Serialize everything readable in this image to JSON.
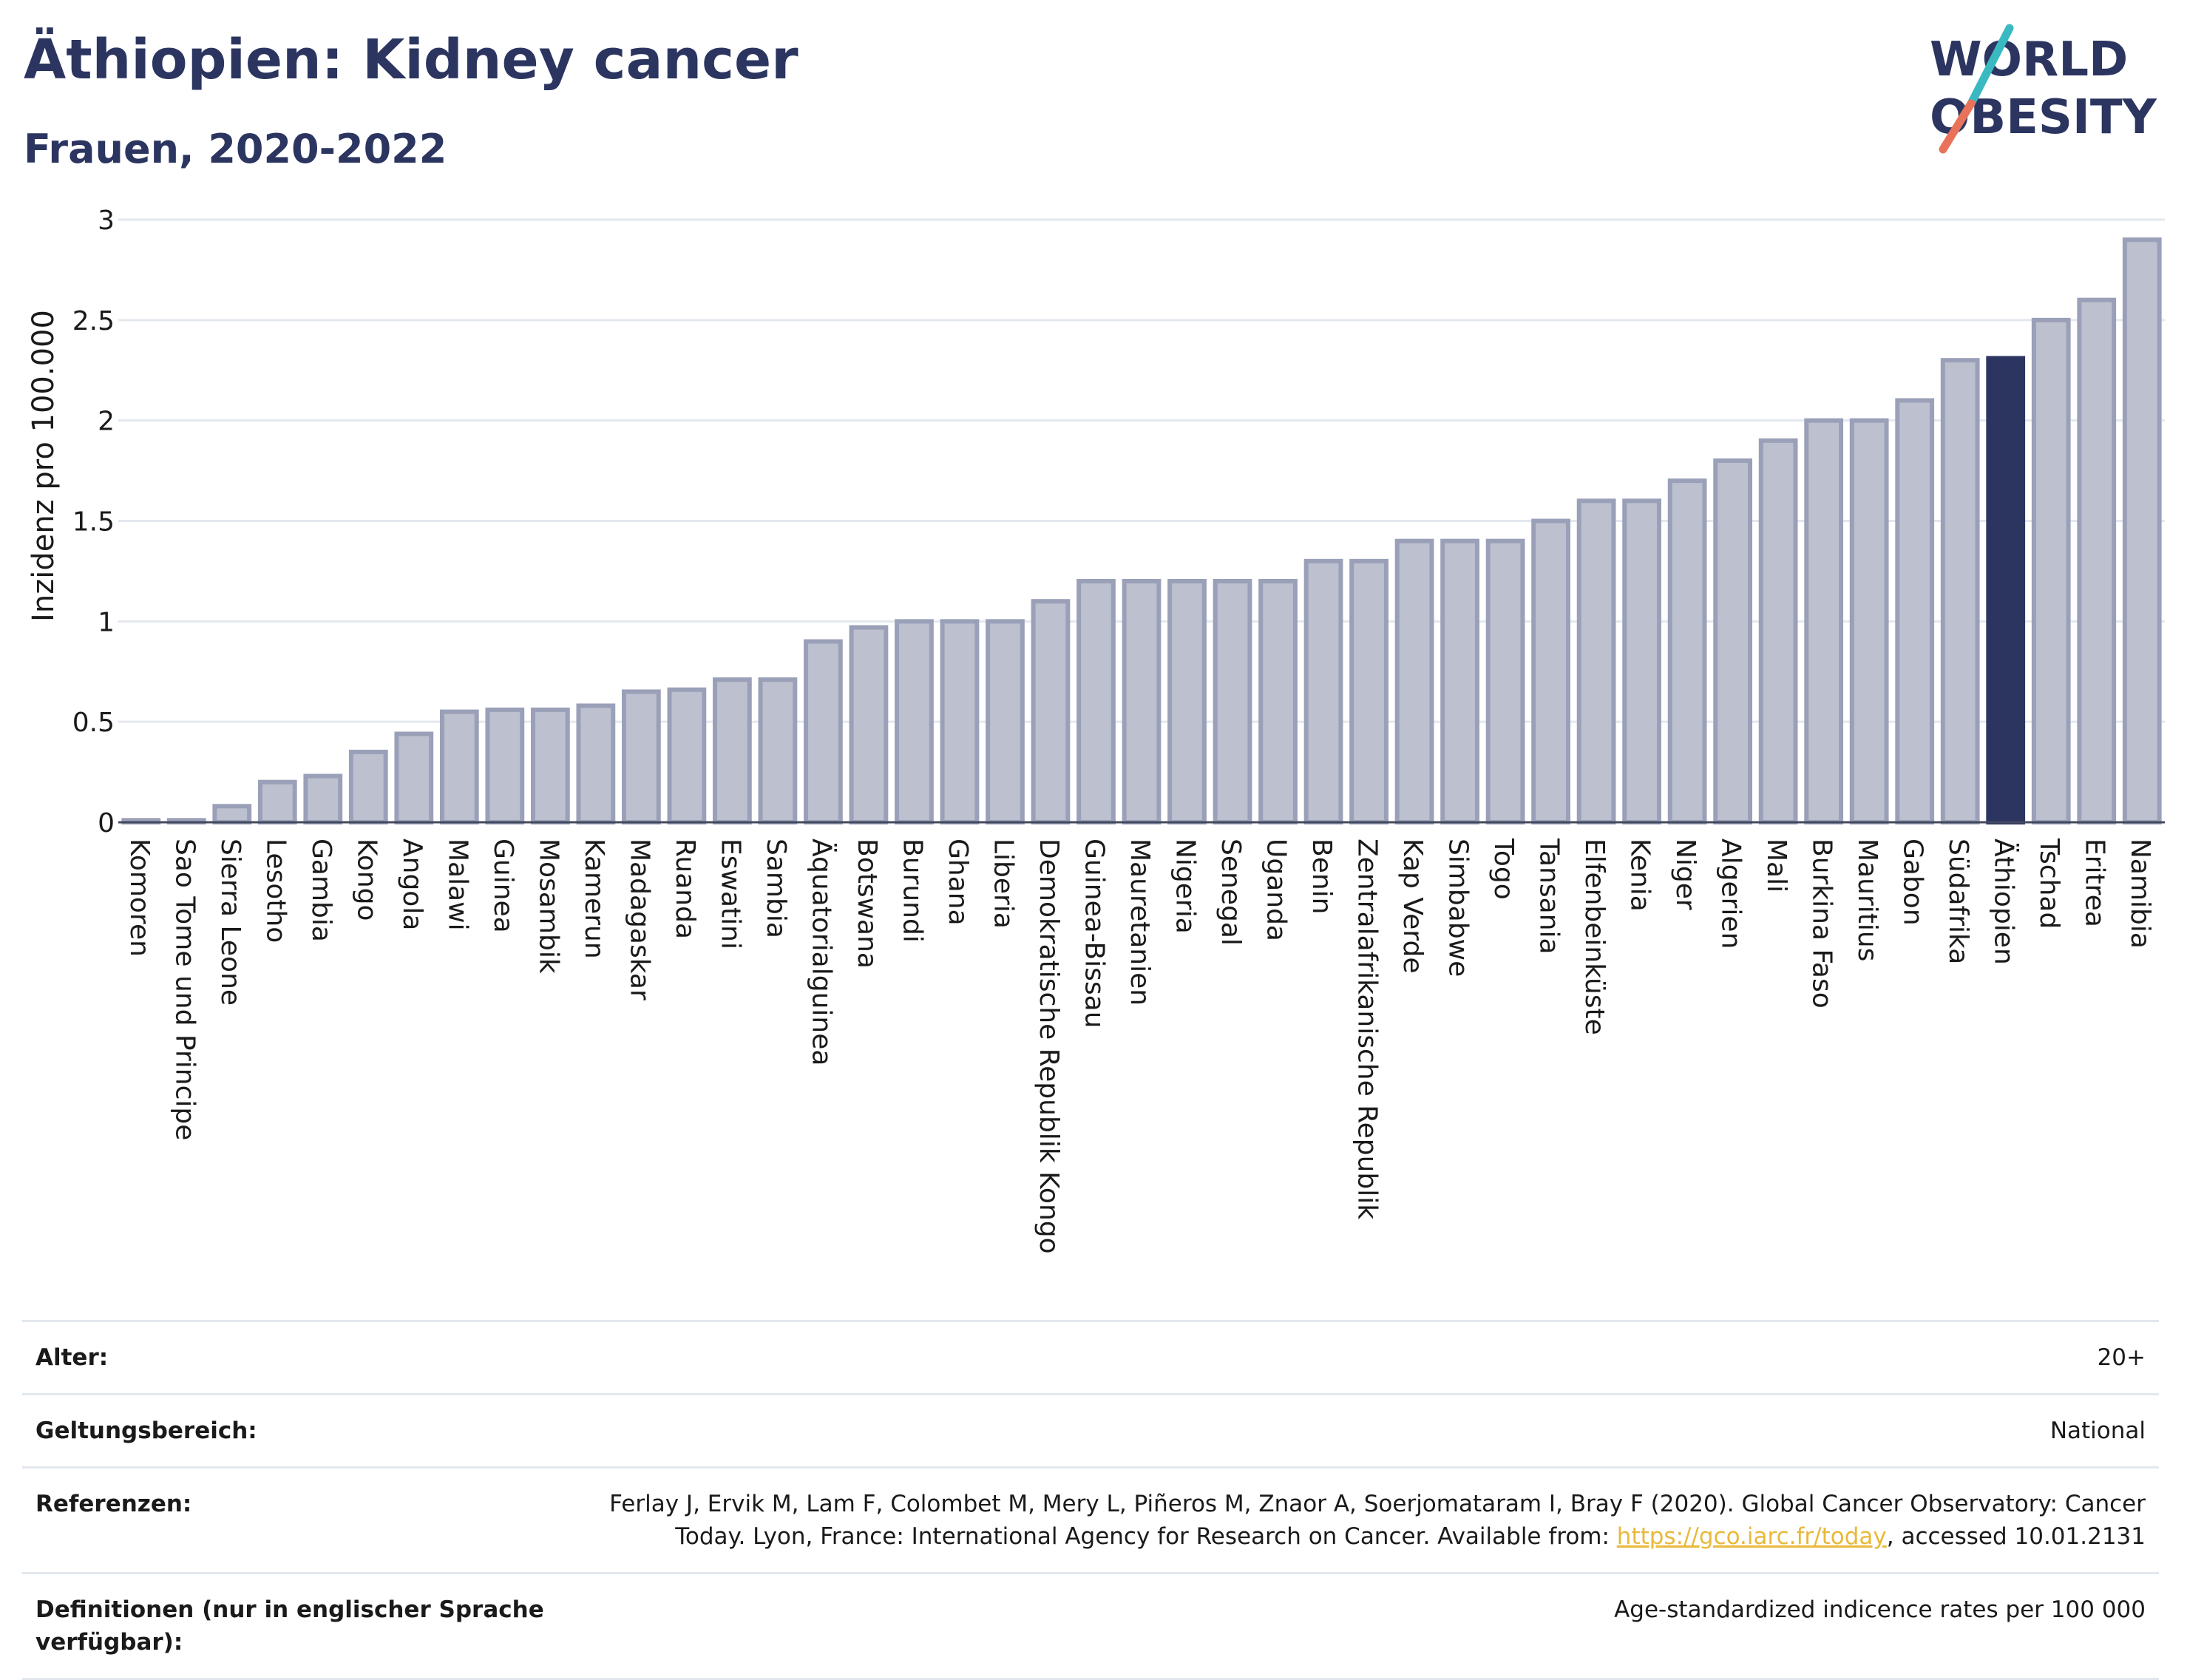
{
  "header": {
    "title": "Äthiopien: Kidney cancer",
    "subtitle": "Frauen, 2020-2022"
  },
  "logo": {
    "line1": "WORLD",
    "line2": "OBESITY"
  },
  "colors": {
    "title": "#2b3560",
    "bar": "#bcc0cf",
    "bar_stroke": "#9aa0b8",
    "highlight": "#2b3560",
    "grid": "#e3e8ef",
    "link": "#e8b93a",
    "logo_teal": "#3ab9c0",
    "logo_coral": "#e8735a"
  },
  "chart_data": {
    "type": "bar",
    "ylabel": "Inzidenz pro 100.000",
    "xlabel": "",
    "ylim": [
      0,
      3
    ],
    "yticks": [
      0,
      0.5,
      1,
      1.5,
      2,
      2.5,
      3
    ],
    "ytick_labels": [
      "0",
      "0.5",
      "1",
      "1.5",
      "2",
      "2.5",
      "3"
    ],
    "grid": true,
    "highlight": "Äthiopien",
    "categories": [
      "Komoren",
      "Sao Tome und Principe",
      "Sierra Leone",
      "Lesotho",
      "Gambia",
      "Kongo",
      "Angola",
      "Malawi",
      "Guinea",
      "Mosambik",
      "Kamerun",
      "Madagaskar",
      "Ruanda",
      "Eswatini",
      "Sambia",
      "Äquatorialguinea",
      "Botswana",
      "Burundi",
      "Ghana",
      "Liberia",
      "Demokratische Republik Kongo",
      "Guinea-Bissau",
      "Mauretanien",
      "Nigeria",
      "Senegal",
      "Uganda",
      "Benin",
      "Zentralafrikanische Republik",
      "Kap Verde",
      "Simbabwe",
      "Togo",
      "Tansania",
      "Elfenbeinküste",
      "Kenia",
      "Niger",
      "Algerien",
      "Mali",
      "Burkina Faso",
      "Mauritius",
      "Gabon",
      "Südafrika",
      "Äthiopien",
      "Tschad",
      "Eritrea",
      "Namibia"
    ],
    "values": [
      0.01,
      0.01,
      0.08,
      0.2,
      0.23,
      0.35,
      0.44,
      0.55,
      0.56,
      0.56,
      0.58,
      0.65,
      0.66,
      0.71,
      0.71,
      0.9,
      0.97,
      1.0,
      1.0,
      1.0,
      1.1,
      1.2,
      1.2,
      1.2,
      1.2,
      1.2,
      1.3,
      1.3,
      1.4,
      1.4,
      1.4,
      1.5,
      1.6,
      1.6,
      1.7,
      1.8,
      1.9,
      2.0,
      2.0,
      2.1,
      2.3,
      2.31,
      2.5,
      2.6,
      2.9
    ]
  },
  "meta": {
    "age_label": "Alter:",
    "age_value": "20+",
    "scope_label": "Geltungsbereich:",
    "scope_value": "National",
    "ref_label": "Referenzen:",
    "ref_text_1": "Ferlay J, Ervik M, Lam F, Colombet M, Mery L, Piñeros M, Znaor A, Soerjomataram I, Bray F (2020). Global Cancer Observatory: Cancer Today. Lyon, France: International Agency for Research on Cancer. Available from: ",
    "ref_link": "https://gco.iarc.fr/today",
    "ref_text_2": ", accessed 10.01.2131",
    "def_label": "Definitionen (nur in englischer Sprache verfügbar):",
    "def_value": "Age-standardized indicence rates per 100 000"
  }
}
